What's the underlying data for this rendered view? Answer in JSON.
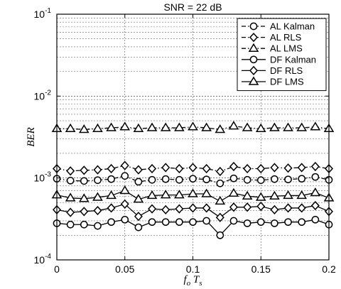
{
  "chart_data": {
    "type": "line",
    "title": "SNR = 22 dB",
    "xlabel": "f_o T_s",
    "ylabel": "BER",
    "xlim": [
      0,
      0.2
    ],
    "ylim": [
      0.0001,
      0.1
    ],
    "yscale": "log",
    "grid": true,
    "legend_position": "top-right",
    "x_ticks": [
      {
        "value": 0,
        "label": "0"
      },
      {
        "value": 0.05,
        "label": "0.05"
      },
      {
        "value": 0.1,
        "label": "0.1"
      },
      {
        "value": 0.15,
        "label": "0.15"
      },
      {
        "value": 0.2,
        "label": "0.2"
      }
    ],
    "y_ticks": [
      {
        "value": 0.0001,
        "base": "10",
        "exp": "-4"
      },
      {
        "value": 0.001,
        "base": "10",
        "exp": "-3"
      },
      {
        "value": 0.01,
        "base": "10",
        "exp": "-2"
      },
      {
        "value": 0.1,
        "base": "10",
        "exp": "-1"
      }
    ],
    "x": [
      0,
      0.01,
      0.02,
      0.03,
      0.04,
      0.05,
      0.06,
      0.07,
      0.08,
      0.09,
      0.1,
      0.11,
      0.12,
      0.13,
      0.14,
      0.15,
      0.16,
      0.17,
      0.18,
      0.19,
      0.2
    ],
    "series": [
      {
        "name": "AL Kalman",
        "marker": "circle",
        "line": "dashdot",
        "values": [
          0.00098,
          0.00093,
          0.00092,
          0.00094,
          0.00097,
          0.00106,
          0.0009,
          0.00095,
          0.00097,
          0.00095,
          0.00098,
          0.00096,
          0.00086,
          0.00099,
          0.00095,
          0.00094,
          0.00097,
          0.00096,
          0.00098,
          0.00103,
          0.00095
        ]
      },
      {
        "name": "AL RLS",
        "marker": "diamond",
        "line": "dashdot",
        "values": [
          0.0013,
          0.00122,
          0.00124,
          0.00126,
          0.0013,
          0.00142,
          0.00126,
          0.0013,
          0.00134,
          0.0013,
          0.00134,
          0.0013,
          0.0012,
          0.00138,
          0.0013,
          0.0013,
          0.00134,
          0.00132,
          0.00134,
          0.00138,
          0.0013
        ]
      },
      {
        "name": "AL LMS",
        "marker": "triangle",
        "line": "dashdot",
        "values": [
          0.004,
          0.004,
          0.0039,
          0.004,
          0.0041,
          0.0042,
          0.004,
          0.0041,
          0.0041,
          0.0041,
          0.0042,
          0.0041,
          0.0039,
          0.0043,
          0.0041,
          0.004,
          0.0041,
          0.0041,
          0.0041,
          0.0042,
          0.004
        ]
      },
      {
        "name": "DF Kalman",
        "marker": "circle",
        "line": "solid",
        "values": [
          0.00028,
          0.00027,
          0.00027,
          0.00026,
          0.00029,
          0.00031,
          0.00025,
          0.00029,
          0.00029,
          0.00029,
          0.00029,
          0.0003,
          0.0002,
          0.0003,
          0.00028,
          0.00029,
          0.00028,
          0.00029,
          0.00029,
          0.00031,
          0.00027
        ]
      },
      {
        "name": "DF RLS",
        "marker": "diamond",
        "line": "solid",
        "values": [
          0.00041,
          0.00038,
          0.00039,
          0.0004,
          0.00043,
          0.00048,
          0.00034,
          0.00042,
          0.00041,
          0.00042,
          0.00043,
          0.00043,
          0.00033,
          0.00044,
          0.00044,
          0.00045,
          0.00041,
          0.00043,
          0.00043,
          0.00046,
          0.00039
        ]
      },
      {
        "name": "DF LMS",
        "marker": "triangle",
        "line": "solid",
        "values": [
          0.00062,
          0.00057,
          0.00056,
          0.00058,
          0.00061,
          0.0007,
          0.00055,
          0.00061,
          0.00062,
          0.00062,
          0.00064,
          0.00064,
          0.00052,
          0.00065,
          0.0006,
          0.00058,
          0.0006,
          0.00061,
          0.00061,
          0.00066,
          0.00057
        ]
      }
    ]
  }
}
